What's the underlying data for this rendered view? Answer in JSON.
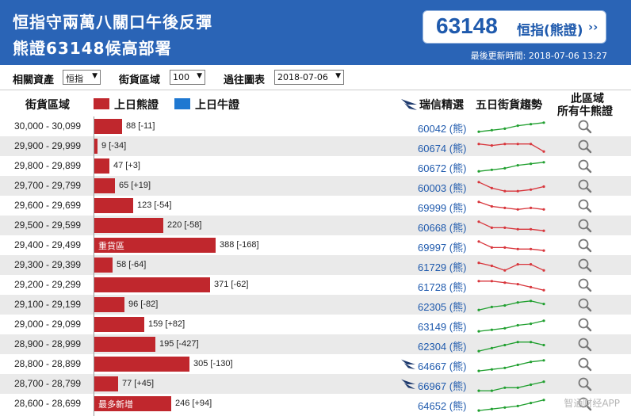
{
  "header": {
    "title_line1": "恒指守兩萬八關口午後反彈",
    "title_line2": "熊證63148候高部署",
    "stock_code": "63148",
    "stock_name": "恒指(熊證)",
    "stock_arrow": "››",
    "updated_label": "最後更新時間: 2018-07-06 13:27"
  },
  "filters": {
    "asset_label": "相關資產",
    "asset_value": "恒指",
    "range_label": "街貨區域",
    "range_value": "100",
    "past_label": "過往圖表",
    "past_value": "2018-07-06"
  },
  "columns": {
    "range": "街貨區域",
    "bear_legend": "上日熊證",
    "bull_legend": "上日牛證",
    "picks": "瑞信精選",
    "trend": "五日街貨趨勢",
    "area_line1": "此區域",
    "area_line2": "所有牛熊證"
  },
  "colors": {
    "header_bg": "#2a64b6",
    "bear": "#c0272d",
    "bull": "#1f78d1",
    "trend_up": "#22a031",
    "trend_down": "#d8363c",
    "link": "#1f5aad"
  },
  "rows": [
    {
      "range": "30,000 - 30,099",
      "value": 88,
      "label": "88 [-11]",
      "tag": "",
      "warrant": "60042 (熊)",
      "logo": false,
      "trend": "up",
      "spark": [
        8,
        7,
        6,
        4,
        3,
        2
      ]
    },
    {
      "range": "29,900 - 29,999",
      "value": 9,
      "label": "9 [-34]",
      "tag": "",
      "warrant": "60674 (熊)",
      "logo": false,
      "trend": "down",
      "spark": [
        3,
        4,
        3,
        3,
        3,
        8
      ]
    },
    {
      "range": "29,800 - 29,899",
      "value": 47,
      "label": "47 [+3]",
      "tag": "",
      "warrant": "60672 (熊)",
      "logo": false,
      "trend": "up",
      "spark": [
        8,
        7,
        6,
        4,
        3,
        2
      ]
    },
    {
      "range": "29,700 - 29,799",
      "value": 65,
      "label": "65 [+19]",
      "tag": "",
      "warrant": "60003 (熊)",
      "logo": false,
      "trend": "down",
      "spark": [
        2,
        6,
        8,
        8,
        7,
        5
      ]
    },
    {
      "range": "29,600 - 29,699",
      "value": 123,
      "label": "123 [-54]",
      "tag": "",
      "warrant": "69999 (熊)",
      "logo": false,
      "trend": "down",
      "spark": [
        2,
        5,
        6,
        7,
        6,
        7
      ]
    },
    {
      "range": "29,500 - 29,599",
      "value": 220,
      "label": "220 [-58]",
      "tag": "",
      "warrant": "60668 (熊)",
      "logo": false,
      "trend": "down",
      "spark": [
        2,
        6,
        6,
        7,
        7,
        8
      ]
    },
    {
      "range": "29,400 - 29,499",
      "value": 388,
      "label": "388 [-168]",
      "tag": "重貨區",
      "warrant": "69997 (熊)",
      "logo": false,
      "trend": "down",
      "spark": [
        2,
        6,
        6,
        7,
        7,
        8
      ]
    },
    {
      "range": "29,300 - 29,399",
      "value": 58,
      "label": "58 [-64]",
      "tag": "",
      "warrant": "61729 (熊)",
      "logo": false,
      "trend": "down",
      "spark": [
        3,
        5,
        8,
        4,
        4,
        8
      ]
    },
    {
      "range": "29,200 - 29,299",
      "value": 371,
      "label": "371 [-62]",
      "tag": "",
      "warrant": "61728 (熊)",
      "logo": false,
      "trend": "down",
      "spark": [
        2,
        2,
        3,
        4,
        6,
        8
      ]
    },
    {
      "range": "29,100 - 29,199",
      "value": 96,
      "label": "96 [-82]",
      "tag": "",
      "warrant": "62305 (熊)",
      "logo": false,
      "trend": "up",
      "spark": [
        8,
        6,
        5,
        3,
        2,
        4
      ]
    },
    {
      "range": "29,000 - 29,099",
      "value": 159,
      "label": "159 [+82]",
      "tag": "",
      "warrant": "63149 (熊)",
      "logo": false,
      "trend": "up",
      "spark": [
        9,
        8,
        7,
        5,
        4,
        2
      ]
    },
    {
      "range": "28,900 - 28,999",
      "value": 195,
      "label": "195 [-427]",
      "tag": "",
      "warrant": "62304 (熊)",
      "logo": false,
      "trend": "up",
      "spark": [
        9,
        7,
        5,
        3,
        3,
        5
      ]
    },
    {
      "range": "28,800 - 28,899",
      "value": 305,
      "label": "305 [-130]",
      "tag": "",
      "warrant": "64667 (熊)",
      "logo": true,
      "trend": "up",
      "spark": [
        9,
        8,
        7,
        5,
        3,
        2
      ]
    },
    {
      "range": "28,700 - 28,799",
      "value": 77,
      "label": "77 [+45]",
      "tag": "",
      "warrant": "66967 (熊)",
      "logo": true,
      "trend": "up",
      "spark": [
        9,
        9,
        7,
        7,
        5,
        3
      ]
    },
    {
      "range": "28,600 - 28,699",
      "value": 246,
      "label": "246 [+94]",
      "tag": "最多新增",
      "warrant": "64652 (熊)",
      "logo": false,
      "trend": "up",
      "spark": [
        9,
        8,
        7,
        6,
        4,
        2
      ]
    }
  ],
  "watermark": "智通财经APP",
  "icons": {
    "search": "magnifier-icon",
    "bank_logo": "credit-suisse-sails-icon",
    "dropdown": "caret-down-icon"
  }
}
